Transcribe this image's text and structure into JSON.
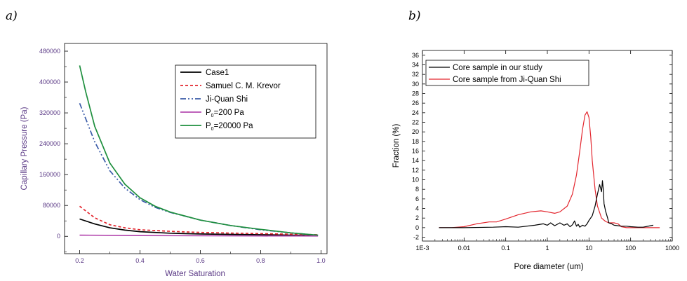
{
  "panels": {
    "a": "a)",
    "b": "b)"
  },
  "chart_data": [
    {
      "type": "line",
      "xlabel": "Water Saturation",
      "ylabel": "Capillary Pressure (Pa)",
      "xlim": [
        0.15,
        1.02
      ],
      "ylim": [
        -45000,
        500000
      ],
      "xticks": [
        "0.2",
        "0.4",
        "0.6",
        "0.8",
        "1.0"
      ],
      "yticks": [
        "0",
        "80000",
        "160000",
        "240000",
        "320000",
        "400000",
        "480000"
      ],
      "legend_position": "top-right",
      "legend": {
        "case1": "Case1",
        "krevor": "Samuel C. M. Krevor",
        "shi": "Ji-Quan Shi",
        "p200_main": "P",
        "p200_sub": "0",
        "p200_rest": "=200 Pa",
        "p20000_main": "P",
        "p20000_sub": "0",
        "p20000_rest": "=20000 Pa"
      },
      "series": [
        {
          "name": "Case1",
          "color": "#000000",
          "dash": "none",
          "x": [
            0.2,
            0.25,
            0.3,
            0.35,
            0.4,
            0.5,
            0.6,
            0.7,
            0.8,
            0.9,
            0.99
          ],
          "y": [
            45000,
            32000,
            22000,
            16000,
            12000,
            8000,
            6000,
            5000,
            4000,
            3000,
            2500
          ]
        },
        {
          "name": "Samuel C. M. Krevor",
          "color": "#e3262e",
          "dash": "4,3",
          "x": [
            0.2,
            0.25,
            0.3,
            0.35,
            0.4,
            0.5,
            0.6,
            0.7,
            0.8,
            0.9,
            0.99
          ],
          "y": [
            78000,
            48000,
            30000,
            22000,
            17000,
            13000,
            10000,
            8500,
            7000,
            5500,
            4000
          ]
        },
        {
          "name": "Ji-Quan Shi",
          "color": "#3a5ba8",
          "dash": "8,3,2,3,2,3",
          "x": [
            0.2,
            0.25,
            0.3,
            0.35,
            0.4,
            0.45,
            0.5,
            0.6,
            0.7,
            0.8,
            0.9,
            0.99
          ],
          "y": [
            345000,
            245000,
            170000,
            125000,
            95000,
            75000,
            62000,
            42000,
            28000,
            17000,
            9000,
            3000
          ]
        },
        {
          "name": "P0=200 Pa",
          "color": "#b54bb0",
          "dash": "none",
          "x": [
            0.2,
            0.4,
            0.6,
            0.8,
            0.99
          ],
          "y": [
            3000,
            2000,
            1500,
            1000,
            800
          ]
        },
        {
          "name": "P0=20000 Pa",
          "color": "#1e8f3e",
          "dash": "none",
          "x": [
            0.2,
            0.22,
            0.25,
            0.3,
            0.35,
            0.4,
            0.45,
            0.5,
            0.6,
            0.7,
            0.8,
            0.9,
            0.99
          ],
          "y": [
            443000,
            375000,
            285000,
            190000,
            135000,
            100000,
            78000,
            63000,
            42000,
            28000,
            18000,
            9000,
            3000
          ]
        }
      ]
    },
    {
      "type": "line",
      "xscale": "log",
      "xlabel": "Pore diameter (um)",
      "ylabel": "Fraction (%)",
      "xlim": [
        0.001,
        1000
      ],
      "ylim": [
        -2.8,
        37
      ],
      "xticks": [
        "1E-3",
        "0.01",
        "0.1",
        "1",
        "10",
        "100",
        "1000"
      ],
      "yticks": [
        "-2",
        "0",
        "2",
        "4",
        "6",
        "8",
        "10",
        "12",
        "14",
        "16",
        "18",
        "20",
        "22",
        "24",
        "26",
        "28",
        "30",
        "32",
        "34",
        "36"
      ],
      "legend_position": "top-left",
      "legend": {
        "black": "Core sample in our study",
        "red": "Core sample from Ji-Quan Shi"
      },
      "series": [
        {
          "name": "Core sample in our study",
          "color": "#000000",
          "x": [
            0.0025,
            0.01,
            0.05,
            0.1,
            0.2,
            0.5,
            0.8,
            1.0,
            1.2,
            1.5,
            2.0,
            2.5,
            3.0,
            3.5,
            4.0,
            4.5,
            5.0,
            5.5,
            6.0,
            7.0,
            8.0,
            9.0,
            10,
            12,
            14,
            16,
            18,
            20,
            21,
            22,
            23,
            25,
            28,
            30,
            35,
            40,
            50,
            60,
            80,
            100,
            150,
            200,
            300,
            350
          ],
          "y": [
            0,
            0,
            0.1,
            0.2,
            0.1,
            0.5,
            0.8,
            0.5,
            1.0,
            0.4,
            1.0,
            0.5,
            0.8,
            0.2,
            0.6,
            1.4,
            0.3,
            0.7,
            0.1,
            0.5,
            0.3,
            0.8,
            1.5,
            2.5,
            4.5,
            7.0,
            9.0,
            7.5,
            9.8,
            8.0,
            5.0,
            3.5,
            2.0,
            1.0,
            0.8,
            0.5,
            0.4,
            0.3,
            0.3,
            0.2,
            0.1,
            0.1,
            0.4,
            0.5
          ]
        },
        {
          "name": "Core sample from Ji-Quan Shi",
          "color": "#e3262e",
          "x": [
            0.0025,
            0.005,
            0.01,
            0.02,
            0.04,
            0.06,
            0.1,
            0.2,
            0.4,
            0.7,
            1.0,
            1.5,
            2.0,
            3.0,
            4.0,
            5.0,
            6.0,
            7.0,
            8.0,
            9.0,
            10,
            11,
            12,
            14,
            16,
            20,
            25,
            30,
            40,
            50,
            60,
            80,
            100,
            200,
            500
          ],
          "y": [
            0,
            0,
            0.2,
            0.8,
            1.2,
            1.2,
            1.8,
            2.7,
            3.3,
            3.5,
            3.3,
            3.0,
            3.3,
            4.5,
            7.0,
            11.0,
            16.0,
            20.5,
            23.5,
            24.2,
            23.0,
            19.0,
            14.0,
            8.0,
            4.5,
            2.0,
            1.3,
            1.0,
            1.0,
            0.8,
            0.2,
            0,
            0,
            0,
            0
          ]
        }
      ]
    }
  ]
}
